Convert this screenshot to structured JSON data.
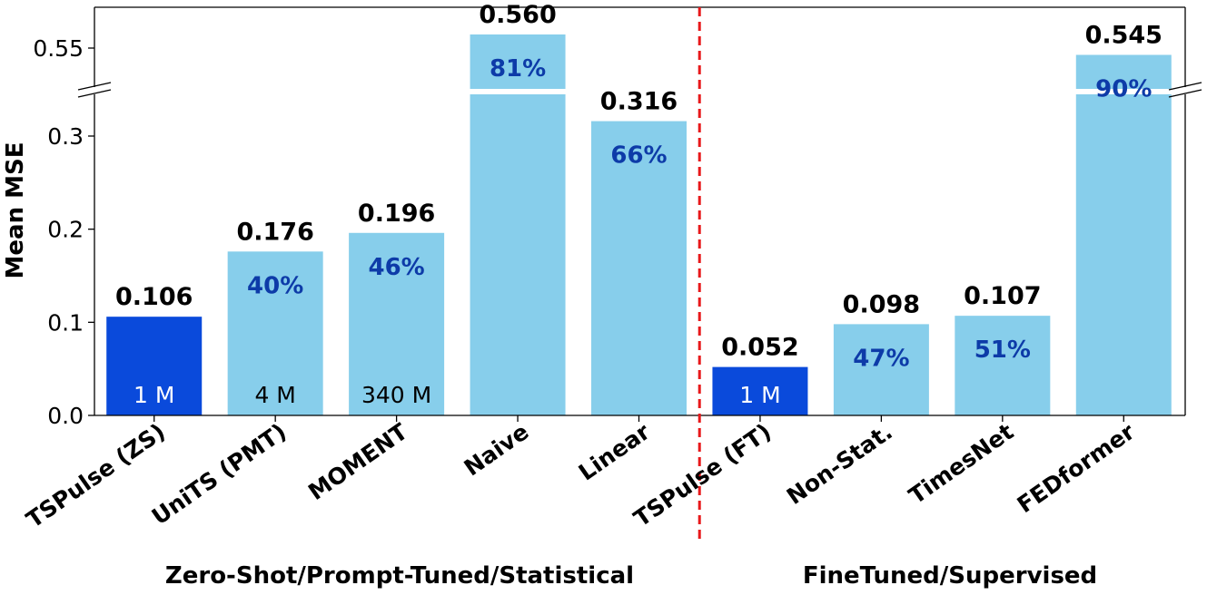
{
  "chart_data": {
    "type": "bar",
    "ylabel": "Mean MSE",
    "y_axis_break": true,
    "lower_ylim": [
      0,
      0.35
    ],
    "upper_ylim": [
      0.54,
      0.565
    ],
    "yticks_lower": [
      "0.0",
      "0.1",
      "0.2",
      "0.3"
    ],
    "yticks_upper": [
      "0.55"
    ],
    "categories": [
      "TSPulse (ZS)",
      "UniTS (PMT)",
      "MOMENT",
      "Naive",
      "Linear",
      "TSPulse (FT)",
      "Non-Stat.",
      "TimesNet",
      "FEDformer"
    ],
    "values": [
      0.106,
      0.176,
      0.196,
      0.56,
      0.316,
      0.052,
      0.098,
      0.107,
      0.545
    ],
    "value_labels": [
      "0.106",
      "0.176",
      "0.196",
      "0.560",
      "0.316",
      "0.052",
      "0.098",
      "0.107",
      "0.545"
    ],
    "improvement_labels": [
      "",
      "40%",
      "46%",
      "81%",
      "66%",
      "",
      "47%",
      "51%",
      "90%"
    ],
    "param_labels": [
      "1 M",
      "4 M",
      "340 M",
      "",
      "",
      "1 M",
      "",
      "",
      ""
    ],
    "highlight": [
      true,
      false,
      false,
      false,
      false,
      true,
      false,
      false,
      false
    ],
    "groups": [
      {
        "label": "Zero-Shot/Prompt-Tuned/Statistical",
        "start": 0,
        "end": 4
      },
      {
        "label": "FineTuned/Supervised",
        "start": 5,
        "end": 8
      }
    ],
    "colors": {
      "highlight": "#0a4adb",
      "default": "#87ceeb",
      "pct_text": "#0d3ba8",
      "divider": "#e8191b"
    }
  }
}
